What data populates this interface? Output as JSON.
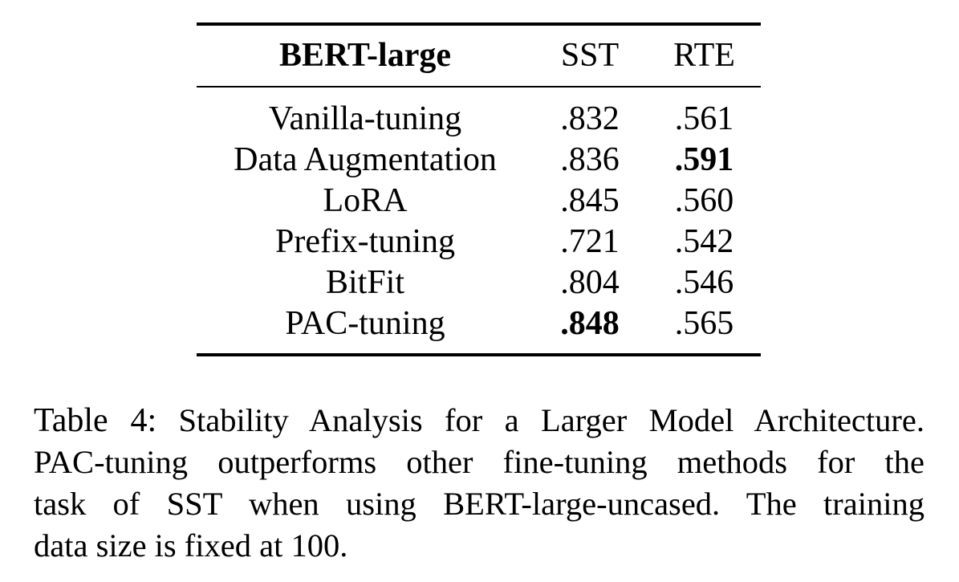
{
  "table": {
    "header": {
      "method": "BERT-large",
      "sst": "SST",
      "rte": "RTE"
    },
    "rows": [
      {
        "method": "Vanilla-tuning",
        "sst": ".832",
        "rte": ".561",
        "sst_bold": false,
        "rte_bold": false
      },
      {
        "method": "Data Augmentation",
        "sst": ".836",
        "rte": ".591",
        "sst_bold": false,
        "rte_bold": true
      },
      {
        "method": "LoRA",
        "sst": ".845",
        "rte": ".560",
        "sst_bold": false,
        "rte_bold": false
      },
      {
        "method": "Prefix-tuning",
        "sst": ".721",
        "rte": ".542",
        "sst_bold": false,
        "rte_bold": false
      },
      {
        "method": "BitFit",
        "sst": ".804",
        "rte": ".546",
        "sst_bold": false,
        "rte_bold": false
      },
      {
        "method": "PAC-tuning",
        "sst": ".848",
        "rte": ".565",
        "sst_bold": true,
        "rte_bold": false
      }
    ]
  },
  "caption": {
    "label": "Table 4:",
    "lines": [
      "Stability Analysis for a Larger Model Architecture.",
      "PAC-tuning outperforms other fine-tuning methods for the",
      "task of SST when using BERT-large-uncased. The training",
      "data size is fixed at 100."
    ]
  }
}
